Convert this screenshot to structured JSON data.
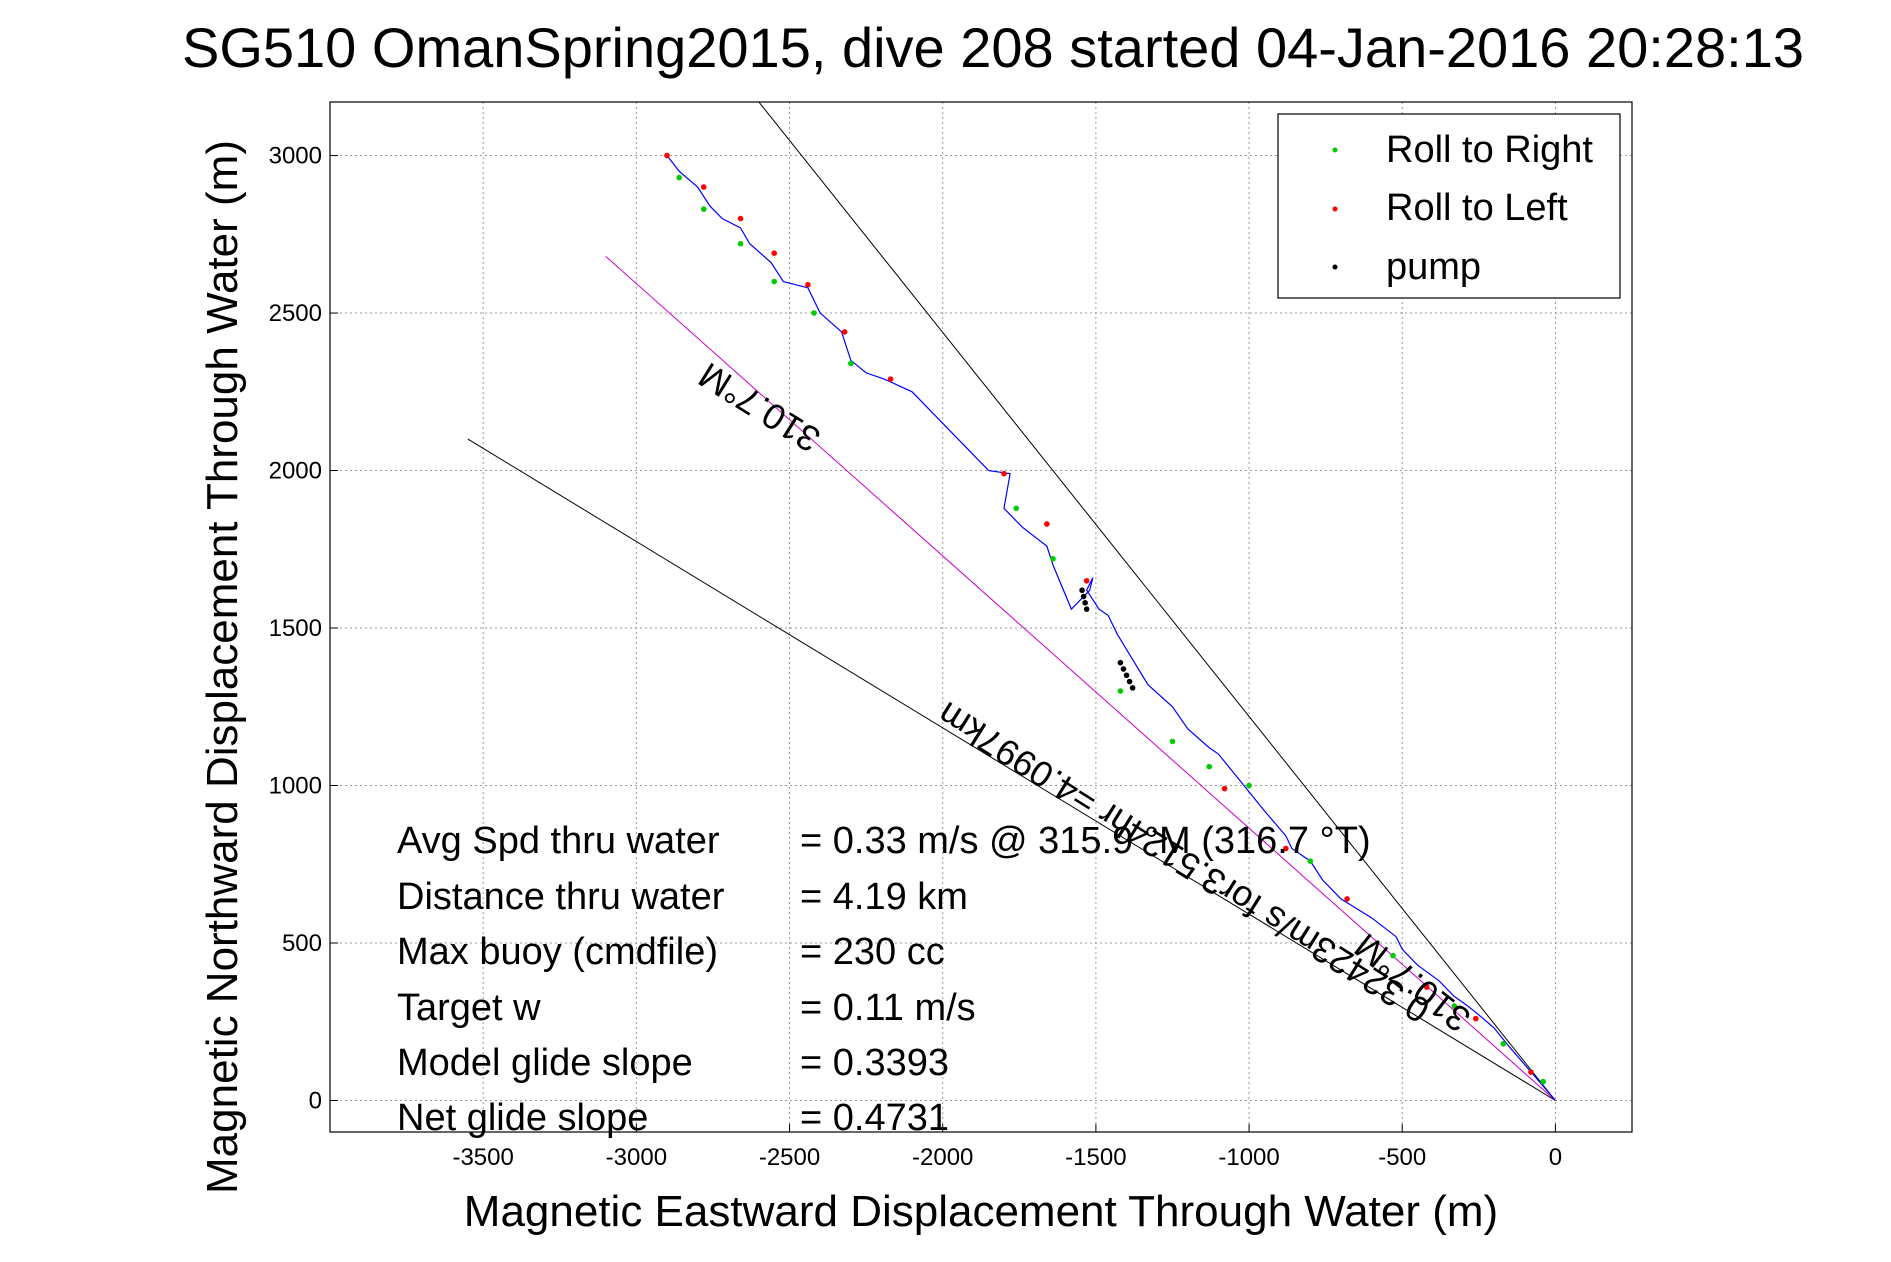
{
  "chart_data": {
    "type": "scatter",
    "title": "SG510 OmanSpring2015, dive 208 started 04-Jan-2016 20:28:13",
    "xlabel": "Magnetic Eastward Displacement Through Water (m)",
    "ylabel": "Magnetic Northward Displacement Through Water (m)",
    "xlim": [
      -4000,
      250
    ],
    "ylim": [
      -100,
      3170
    ],
    "xticks": [
      -3500,
      -3000,
      -2500,
      -2000,
      -1500,
      -1000,
      -500,
      0
    ],
    "yticks": [
      0,
      500,
      1000,
      1500,
      2000,
      2500,
      3000
    ],
    "grid": true,
    "legend_position": "top-right",
    "legend": [
      {
        "label": "Roll to Right",
        "color": "#00cc00"
      },
      {
        "label": "Roll to Left",
        "color": "#ff0000"
      },
      {
        "label": "pump",
        "color": "#000000"
      }
    ],
    "track": {
      "name": "glider track",
      "color": "#0000ff",
      "x": [
        0,
        -70,
        -150,
        -200,
        -260,
        -300,
        -330,
        -380,
        -450,
        -500,
        -520,
        -600,
        -700,
        -760,
        -800,
        -860,
        -880,
        -950,
        -1000,
        -1050,
        -1100,
        -1130,
        -1200,
        -1250,
        -1330,
        -1380,
        -1430,
        -1460,
        -1490,
        -1530,
        -1510,
        -1520,
        -1580,
        -1640,
        -1660,
        -1740,
        -1800,
        -1780,
        -1850,
        -2000,
        -2100,
        -2190,
        -2250,
        -2300,
        -2330,
        -2400,
        -2440,
        -2520,
        -2560,
        -2630,
        -2660,
        -2720,
        -2760,
        -2800,
        -2860,
        -2900
      ],
      "y": [
        0,
        80,
        170,
        230,
        280,
        310,
        330,
        380,
        430,
        480,
        520,
        580,
        640,
        700,
        760,
        800,
        840,
        920,
        980,
        1040,
        1100,
        1120,
        1180,
        1250,
        1320,
        1400,
        1480,
        1540,
        1560,
        1620,
        1660,
        1620,
        1560,
        1700,
        1760,
        1820,
        1880,
        1990,
        2000,
        2150,
        2250,
        2290,
        2310,
        2350,
        2440,
        2500,
        2580,
        2600,
        2660,
        2720,
        2770,
        2800,
        2840,
        2900,
        2950,
        3000
      ]
    },
    "roll_right": {
      "x": [
        -40,
        -170,
        -330,
        -530,
        -800,
        -1000,
        -1130,
        -1250,
        -1420,
        -1640,
        -1760,
        -2300,
        -2420,
        -2550,
        -2660,
        -2780,
        -2860
      ],
      "y": [
        60,
        180,
        300,
        460,
        760,
        1000,
        1060,
        1140,
        1300,
        1720,
        1880,
        2340,
        2500,
        2600,
        2720,
        2830,
        2930
      ],
      "color": "#00cc00"
    },
    "roll_left": {
      "x": [
        -80,
        -260,
        -420,
        -680,
        -880,
        -1080,
        -1530,
        -1660,
        -1800,
        -2170,
        -2320,
        -2440,
        -2550,
        -2660,
        -2780,
        -2900
      ],
      "y": [
        90,
        260,
        360,
        640,
        800,
        990,
        1650,
        1830,
        1990,
        2290,
        2440,
        2590,
        2690,
        2800,
        2900,
        3000
      ],
      "color": "#ff0000"
    },
    "pump": {
      "x": [
        -1380,
        -1390,
        -1400,
        -1410,
        -1420,
        -1530,
        -1535,
        -1540,
        -1545
      ],
      "y": [
        1310,
        1330,
        1350,
        1370,
        1390,
        1560,
        1580,
        1600,
        1620
      ],
      "color": "#000000"
    },
    "reference_lines": [
      {
        "name": "upper heading bound",
        "x": [
          0,
          -2600
        ],
        "y": [
          0,
          3170
        ],
        "color": "#000000"
      },
      {
        "name": "lower heading bound",
        "x": [
          0,
          -3550
        ],
        "y": [
          0,
          2100
        ],
        "color": "#000000"
      },
      {
        "name": "average course",
        "x": [
          0,
          -3100
        ],
        "y": [
          0,
          2680
        ],
        "color": "#cc00cc"
      }
    ],
    "annotations": [
      {
        "id": "heading_upper",
        "text": "310.7°M"
      },
      {
        "id": "heading_lower",
        "text": "310.7°M"
      },
      {
        "id": "avg_course",
        "text": "0.32423m/s for3.5124hr =4.0997km"
      }
    ],
    "stats": [
      {
        "label": "Avg Spd thru water",
        "value": "=  0.33 m/s @ 315.9 °M (316.7 °T)"
      },
      {
        "label": "Distance thru water",
        "value": "=  4.19 km"
      },
      {
        "label": "Max buoy (cmdfile)",
        "value": "= 230 cc"
      },
      {
        "label": "Target w",
        "value": "= 0.11 m/s"
      },
      {
        "label": "Model glide slope",
        "value": "= 0.3393"
      },
      {
        "label": "Net glide slope",
        "value": "= 0.4731"
      }
    ]
  }
}
